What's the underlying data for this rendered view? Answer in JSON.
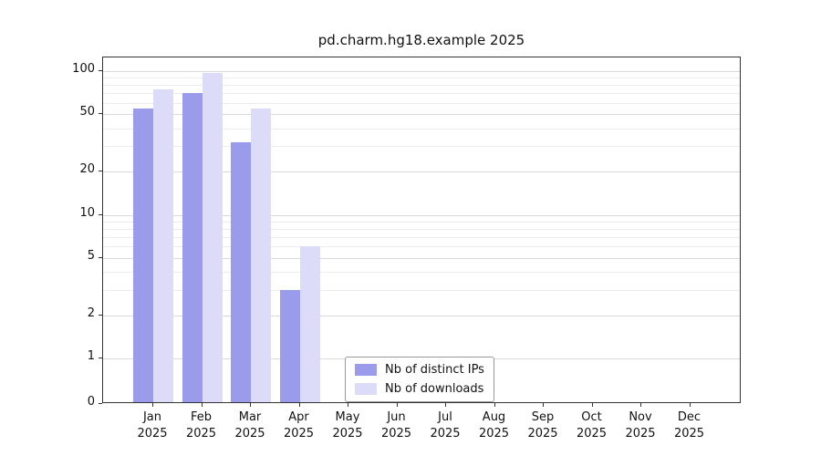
{
  "title": "pd.charm.hg18.example 2025",
  "chart_data": {
    "type": "bar",
    "title": "pd.charm.hg18.example 2025",
    "categories": [
      "Jan",
      "Feb",
      "Mar",
      "Apr",
      "May",
      "Jun",
      "Jul",
      "Aug",
      "Sep",
      "Oct",
      "Nov",
      "Dec"
    ],
    "category_year": "2025",
    "series": [
      {
        "name": "Nb of distinct IPs",
        "color": "#9b9bec",
        "values": [
          55,
          70,
          32,
          3,
          0,
          0,
          0,
          0,
          0,
          0,
          0,
          0
        ]
      },
      {
        "name": "Nb of downloads",
        "color": "#dcdcf8",
        "values": [
          75,
          97,
          55,
          6,
          0,
          0,
          0,
          0,
          0,
          0,
          0,
          0
        ]
      }
    ],
    "yscale": "symlog",
    "yticks": [
      0,
      1,
      2,
      5,
      10,
      20,
      50,
      100
    ],
    "yticks_minor": [
      3,
      4,
      6,
      7,
      8,
      9,
      30,
      40,
      60,
      70,
      80,
      90
    ],
    "ylim": [
      0,
      120
    ],
    "xlabel": "",
    "ylabel": "",
    "grid": "horizontal",
    "legend": {
      "position": "inside-bottom-center",
      "entries": [
        "Nb of distinct IPs",
        "Nb of downloads"
      ]
    }
  },
  "colors": {
    "grid_major": "#d9d9d9",
    "grid_minor": "#ececec",
    "spine": "#333333",
    "background": "#ffffff"
  }
}
